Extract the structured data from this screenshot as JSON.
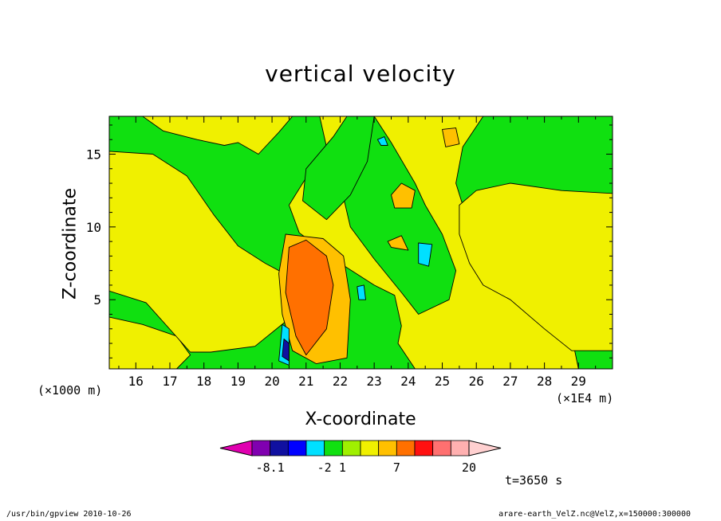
{
  "page": {
    "title": "vertical velocity",
    "xlabel": "X-coordinate",
    "ylabel": "Z-coordinate",
    "x_unit_left": "(×1000 m)",
    "x_unit_right": "(×1E4 m)",
    "time_label": "t=3650 s",
    "footer_left": "/usr/bin/gpview   2010-10-26",
    "footer_right": "arare-earth_VelZ.nc@VelZ,x=150000:300000"
  },
  "chart_data": {
    "type": "heatmap",
    "title": "vertical velocity",
    "xlabel": "X-coordinate",
    "ylabel": "Z-coordinate",
    "x_unit": "×1E4 m",
    "y_unit": "×1000 m",
    "xlim": [
      15.22,
      30.0
    ],
    "ylim": [
      0.25,
      17.6
    ],
    "x_ticks": [
      16,
      17,
      18,
      19,
      20,
      21,
      22,
      23,
      24,
      25,
      26,
      27,
      28,
      29
    ],
    "y_ticks": [
      5,
      10,
      15
    ],
    "colorbar": {
      "levels": [
        -8.1,
        -2,
        1,
        7,
        20
      ],
      "tick_labels": [
        "-8.1",
        "-2",
        "1",
        "7",
        "20"
      ],
      "colors": [
        "#e000b0",
        "#8000b0",
        "#1010a0",
        "#0000ff",
        "#00e0ff",
        "#10e010",
        "#a0f000",
        "#f0f000",
        "#ffc000",
        "#ff7000",
        "#ff1010",
        "#ff7070",
        "#ffb0b0",
        "#ffd0d0"
      ]
    },
    "background_color": "#10e010",
    "fields": [
      {
        "value": "yellow",
        "color": "#f0f000",
        "points": [
          [
            15.22,
            3.8
          ],
          [
            16.2,
            3.3
          ],
          [
            17.2,
            2.5
          ],
          [
            17.6,
            1.2
          ],
          [
            17.2,
            0.25
          ],
          [
            15.22,
            0.25
          ]
        ]
      },
      {
        "value": "yellow",
        "color": "#f0f000",
        "points": [
          [
            15.22,
            15.2
          ],
          [
            16.5,
            15.0
          ],
          [
            17.5,
            13.5
          ],
          [
            18.3,
            10.8
          ],
          [
            19.0,
            8.7
          ],
          [
            19.8,
            7.5
          ],
          [
            20.6,
            6.5
          ],
          [
            20.4,
            3.5
          ],
          [
            19.5,
            1.8
          ],
          [
            18.2,
            1.4
          ],
          [
            17.6,
            1.4
          ],
          [
            16.3,
            4.8
          ],
          [
            15.22,
            5.6
          ]
        ]
      },
      {
        "value": "yellow",
        "color": "#f0f000",
        "points": [
          [
            16.2,
            17.6
          ],
          [
            16.8,
            16.6
          ],
          [
            17.8,
            16.0
          ],
          [
            18.6,
            15.6
          ],
          [
            19.0,
            15.8
          ],
          [
            19.6,
            15.0
          ],
          [
            20.2,
            16.5
          ],
          [
            20.6,
            17.6
          ]
        ]
      },
      {
        "value": "yellow",
        "color": "#f0f000",
        "points": [
          [
            21.4,
            17.6
          ],
          [
            21.6,
            15.5
          ],
          [
            20.9,
            13.0
          ],
          [
            20.5,
            11.5
          ],
          [
            20.8,
            9.6
          ],
          [
            22.0,
            7.5
          ],
          [
            23.0,
            6.0
          ],
          [
            23.6,
            5.3
          ],
          [
            23.8,
            3.2
          ],
          [
            23.7,
            2.0
          ],
          [
            24.2,
            0.25
          ],
          [
            29.0,
            0.25
          ],
          [
            28.8,
            2.5
          ],
          [
            27.6,
            5.0
          ],
          [
            26.5,
            7.5
          ],
          [
            25.8,
            10.0
          ],
          [
            25.4,
            13.0
          ],
          [
            25.6,
            15.5
          ],
          [
            26.2,
            17.6
          ]
        ]
      },
      {
        "value": "green",
        "color": "#10e010",
        "points": [
          [
            23.0,
            17.6
          ],
          [
            23.5,
            15.8
          ],
          [
            24.2,
            13.0
          ],
          [
            24.5,
            11.5
          ],
          [
            25.0,
            9.5
          ],
          [
            25.4,
            7.0
          ],
          [
            25.2,
            5.0
          ],
          [
            24.3,
            4.0
          ],
          [
            23.8,
            5.5
          ],
          [
            23.0,
            7.8
          ],
          [
            22.3,
            10.0
          ],
          [
            22.0,
            13.0
          ],
          [
            22.6,
            16.0
          ]
        ]
      },
      {
        "value": "green",
        "color": "#10e010",
        "points": [
          [
            22.2,
            17.6
          ],
          [
            21.8,
            16.2
          ],
          [
            21.0,
            14.0
          ],
          [
            20.9,
            11.8
          ],
          [
            21.6,
            10.5
          ],
          [
            22.3,
            12.2
          ],
          [
            22.8,
            14.5
          ],
          [
            23.0,
            17.6
          ]
        ]
      },
      {
        "value": "yellow",
        "color": "#f0f000",
        "points": [
          [
            26.0,
            12.5
          ],
          [
            27.0,
            13.0
          ],
          [
            28.5,
            12.5
          ],
          [
            30.0,
            12.3
          ],
          [
            30.0,
            1.5
          ],
          [
            28.8,
            1.5
          ],
          [
            28.0,
            3.0
          ],
          [
            27.0,
            5.0
          ],
          [
            26.2,
            6.0
          ],
          [
            25.8,
            7.5
          ],
          [
            25.5,
            9.5
          ],
          [
            25.5,
            11.5
          ]
        ]
      },
      {
        "value": "orange",
        "color": "#ffc000",
        "points": [
          [
            23.6,
            11.3
          ],
          [
            24.1,
            11.3
          ],
          [
            24.2,
            12.5
          ],
          [
            23.8,
            13.0
          ],
          [
            23.5,
            12.2
          ]
        ]
      },
      {
        "value": "orange",
        "color": "#ffc000",
        "points": [
          [
            23.5,
            8.6
          ],
          [
            24.0,
            8.4
          ],
          [
            23.8,
            9.4
          ],
          [
            23.4,
            9.0
          ]
        ]
      },
      {
        "value": "orange",
        "color": "#ffc000",
        "points": [
          [
            25.1,
            15.5
          ],
          [
            25.5,
            15.7
          ],
          [
            25.4,
            16.8
          ],
          [
            25.0,
            16.7
          ]
        ]
      },
      {
        "value": "orange",
        "color": "#ffc000",
        "points": [
          [
            20.4,
            9.5
          ],
          [
            21.5,
            9.2
          ],
          [
            22.1,
            8.0
          ],
          [
            22.3,
            5.0
          ],
          [
            22.2,
            1.0
          ],
          [
            21.3,
            0.6
          ],
          [
            20.6,
            1.5
          ],
          [
            20.3,
            4.0
          ],
          [
            20.2,
            6.8
          ]
        ]
      },
      {
        "value": "dark-orange",
        "color": "#ff7000",
        "points": [
          [
            20.5,
            8.6
          ],
          [
            21.0,
            9.1
          ],
          [
            21.6,
            8.0
          ],
          [
            21.8,
            6.0
          ],
          [
            21.6,
            3.0
          ],
          [
            21.0,
            1.2
          ],
          [
            20.7,
            2.5
          ],
          [
            20.4,
            5.5
          ]
        ]
      },
      {
        "value": "cyan",
        "color": "#00e0ff",
        "points": [
          [
            20.3,
            3.3
          ],
          [
            20.5,
            3.0
          ],
          [
            20.5,
            0.5
          ],
          [
            20.2,
            0.8
          ]
        ]
      },
      {
        "value": "blue",
        "color": "#1010a0",
        "points": [
          [
            20.35,
            2.3
          ],
          [
            20.5,
            2.0
          ],
          [
            20.5,
            0.8
          ],
          [
            20.3,
            1.1
          ]
        ]
      },
      {
        "value": "cyan",
        "color": "#00e0ff",
        "points": [
          [
            24.3,
            8.9
          ],
          [
            24.7,
            8.8
          ],
          [
            24.6,
            7.3
          ],
          [
            24.3,
            7.5
          ]
        ]
      },
      {
        "value": "cyan",
        "color": "#00e0ff",
        "points": [
          [
            23.2,
            15.6
          ],
          [
            23.4,
            15.6
          ],
          [
            23.3,
            16.2
          ],
          [
            23.1,
            16.0
          ]
        ]
      },
      {
        "value": "cyan",
        "color": "#00e0ff",
        "points": [
          [
            22.55,
            5.0
          ],
          [
            22.75,
            5.0
          ],
          [
            22.7,
            6.0
          ],
          [
            22.5,
            5.9
          ]
        ]
      }
    ]
  }
}
